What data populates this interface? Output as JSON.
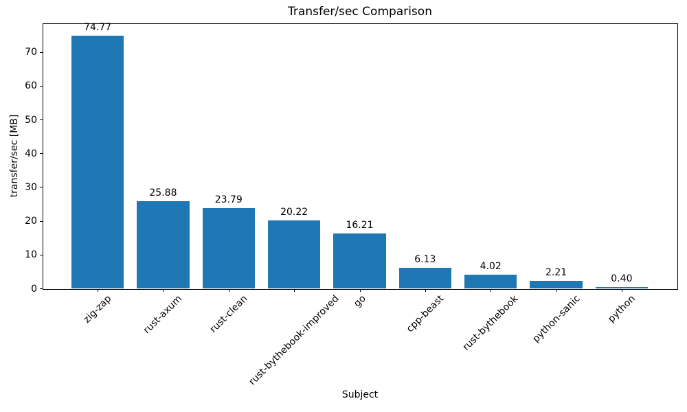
{
  "chart_data": {
    "type": "bar",
    "title": "Transfer/sec Comparison",
    "xlabel": "Subject",
    "ylabel": "transfer/sec [MB]",
    "categories": [
      "zig-zap",
      "rust-axum",
      "rust-clean",
      "rust-bythebook-improved",
      "go",
      "cpp-beast",
      "rust-bythebook",
      "python-sanic",
      "python"
    ],
    "values": [
      74.77,
      25.88,
      23.79,
      20.22,
      16.21,
      6.13,
      4.02,
      2.21,
      0.4
    ],
    "value_labels": [
      "74.77",
      "25.88",
      "23.79",
      "20.22",
      "16.21",
      "6.13",
      "4.02",
      "2.21",
      "0.40"
    ],
    "yticks": [
      0,
      10,
      20,
      30,
      40,
      50,
      60,
      70
    ],
    "ylim": [
      0,
      78.5
    ],
    "bar_color": "#1f77b4",
    "text_color": "#000000",
    "background_color": "#ffffff",
    "grid": false,
    "legend": null
  }
}
